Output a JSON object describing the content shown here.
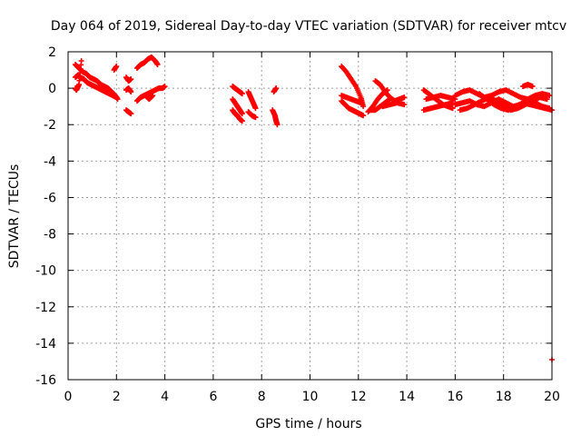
{
  "chart_data": {
    "type": "scatter",
    "title": "Day 064 of 2019, Sidereal Day-to-day VTEC variation (SDTVAR) for receiver mtcv",
    "xlabel": "GPS time / hours",
    "ylabel": "SDTVAR / TECUs",
    "xlim": [
      0,
      20
    ],
    "ylim": [
      -16,
      2
    ],
    "xticks": [
      0,
      2,
      4,
      6,
      8,
      10,
      12,
      14,
      16,
      18,
      20
    ],
    "yticks": [
      2,
      0,
      -2,
      -4,
      -6,
      -8,
      -10,
      -12,
      -14,
      -16
    ],
    "grid": true,
    "marker": "plus",
    "point_color": "#ff0000",
    "segments": [
      {
        "x": [
          0.3,
          0.45,
          0.6,
          0.75,
          0.9,
          1.05,
          1.2,
          1.35,
          1.5,
          1.65,
          1.8,
          1.95,
          2.05
        ],
        "y": [
          1.3,
          1.1,
          0.9,
          0.8,
          0.6,
          0.5,
          0.4,
          0.2,
          0.1,
          0.0,
          -0.2,
          -0.4,
          -0.6
        ]
      },
      {
        "x": [
          0.3,
          0.4,
          0.5,
          0.65,
          0.8,
          0.95,
          1.1,
          1.25,
          1.4,
          1.55,
          1.7,
          1.85,
          2.0
        ],
        "y": [
          0.6,
          0.7,
          0.6,
          0.5,
          0.3,
          0.2,
          0.1,
          0.0,
          -0.1,
          -0.2,
          -0.3,
          -0.4,
          -0.5
        ]
      },
      {
        "x": [
          0.3,
          0.35,
          0.45,
          0.55
        ],
        "y": [
          0.0,
          -0.1,
          0.2,
          1.5
        ]
      },
      {
        "x": [
          1.9,
          2.0
        ],
        "y": [
          1.0,
          1.2
        ]
      },
      {
        "x": [
          2.4,
          2.5,
          2.6
        ],
        "y": [
          0.6,
          0.4,
          0.5
        ]
      },
      {
        "x": [
          2.4,
          2.5,
          2.6
        ],
        "y": [
          -0.1,
          0.0,
          -0.2
        ]
      },
      {
        "x": [
          2.4,
          2.5,
          2.6
        ],
        "y": [
          -1.2,
          -1.3,
          -1.4
        ]
      },
      {
        "x": [
          2.85,
          3.0,
          3.15,
          3.3,
          3.45,
          3.6,
          3.7
        ],
        "y": [
          1.1,
          1.3,
          1.4,
          1.6,
          1.7,
          1.5,
          1.3
        ]
      },
      {
        "x": [
          2.85,
          3.0,
          3.15,
          3.3,
          3.45,
          3.6,
          3.75,
          3.9,
          4.0
        ],
        "y": [
          -0.7,
          -0.5,
          -0.4,
          -0.3,
          -0.2,
          -0.1,
          0.0,
          0.0,
          0.1
        ]
      },
      {
        "x": [
          3.2,
          3.35,
          3.5
        ],
        "y": [
          -0.4,
          -0.6,
          -0.4
        ]
      },
      {
        "x": [
          6.8,
          6.9,
          7.0,
          7.1,
          7.2
        ],
        "y": [
          0.1,
          0.0,
          -0.1,
          -0.2,
          -0.3
        ]
      },
      {
        "x": [
          6.8,
          6.9,
          7.0,
          7.1,
          7.2
        ],
        "y": [
          -0.6,
          -0.8,
          -1.0,
          -1.2,
          -1.4
        ]
      },
      {
        "x": [
          6.8,
          6.9,
          7.0,
          7.1,
          7.2
        ],
        "y": [
          -1.2,
          -1.4,
          -1.5,
          -1.7,
          -1.8
        ]
      },
      {
        "x": [
          7.45,
          7.55,
          7.65,
          7.75
        ],
        "y": [
          -0.2,
          -0.5,
          -0.8,
          -1.1
        ]
      },
      {
        "x": [
          7.45,
          7.6,
          7.75
        ],
        "y": [
          -1.3,
          -1.5,
          -1.6
        ]
      },
      {
        "x": [
          8.45,
          8.55,
          8.6,
          8.65
        ],
        "y": [
          -1.2,
          -1.5,
          -1.8,
          -2.0
        ]
      },
      {
        "x": [
          8.5,
          8.6
        ],
        "y": [
          -0.2,
          0.0
        ]
      },
      {
        "x": [
          11.3,
          11.5,
          11.7,
          11.9,
          12.1,
          12.2
        ],
        "y": [
          1.2,
          0.9,
          0.5,
          0.1,
          -0.5,
          -1.0
        ]
      },
      {
        "x": [
          11.3,
          11.45,
          11.6,
          11.75,
          11.9,
          12.05,
          12.2
        ],
        "y": [
          -0.7,
          -0.9,
          -1.1,
          -1.2,
          -1.3,
          -1.4,
          -1.5
        ]
      },
      {
        "x": [
          11.3,
          11.5,
          11.7,
          11.9,
          12.1
        ],
        "y": [
          -0.4,
          -0.5,
          -0.6,
          -0.7,
          -0.8
        ]
      },
      {
        "x": [
          12.4,
          12.6,
          12.8,
          13.0,
          13.2
        ],
        "y": [
          -1.3,
          -1.0,
          -0.6,
          -0.3,
          -0.1
        ]
      },
      {
        "x": [
          12.5,
          12.7,
          12.9,
          13.1,
          13.3
        ],
        "y": [
          -1.2,
          -1.2,
          -1.0,
          -0.8,
          -0.6
        ]
      },
      {
        "x": [
          12.7,
          12.9,
          13.1,
          13.3,
          13.5,
          13.7,
          13.9
        ],
        "y": [
          0.4,
          0.2,
          -0.2,
          -0.5,
          -0.7,
          -0.6,
          -0.5
        ]
      },
      {
        "x": [
          13.0,
          13.3,
          13.6,
          13.9
        ],
        "y": [
          -1.0,
          -0.9,
          -0.8,
          -0.9
        ]
      },
      {
        "x": [
          14.7,
          14.9,
          15.1,
          15.3,
          15.5,
          15.7,
          15.9
        ],
        "y": [
          -0.1,
          -0.3,
          -0.5,
          -0.7,
          -0.9,
          -1.0,
          -1.1
        ]
      },
      {
        "x": [
          14.7,
          15.0,
          15.3,
          15.6,
          15.9
        ],
        "y": [
          -1.2,
          -1.1,
          -1.0,
          -0.9,
          -0.8
        ]
      },
      {
        "x": [
          14.8,
          15.1,
          15.4,
          15.7,
          16.0
        ],
        "y": [
          -0.6,
          -0.5,
          -0.4,
          -0.5,
          -0.6
        ]
      },
      {
        "x": [
          16.0,
          16.3,
          16.6,
          16.9,
          17.2,
          17.5,
          17.8,
          18.1,
          18.4,
          18.7,
          19.0,
          19.3,
          19.6,
          19.9
        ],
        "y": [
          -0.9,
          -0.8,
          -0.7,
          -0.9,
          -1.0,
          -0.8,
          -0.6,
          -0.8,
          -1.0,
          -0.9,
          -0.7,
          -0.8,
          -1.0,
          -1.1
        ]
      },
      {
        "x": [
          16.0,
          16.3,
          16.6,
          16.9,
          17.2,
          17.5,
          17.8,
          18.1,
          18.4,
          18.7,
          19.0,
          19.3,
          19.6,
          19.9
        ],
        "y": [
          -0.4,
          -0.2,
          -0.1,
          -0.3,
          -0.5,
          -0.4,
          -0.2,
          -0.1,
          -0.3,
          -0.5,
          -0.6,
          -0.4,
          -0.3,
          -0.4
        ]
      },
      {
        "x": [
          16.2,
          16.5,
          16.8,
          17.1,
          17.4,
          17.7,
          18.0,
          18.3,
          18.6,
          18.9,
          19.2,
          19.5,
          19.8
        ],
        "y": [
          -1.2,
          -1.1,
          -0.9,
          -0.7,
          -0.5,
          -0.7,
          -1.0,
          -1.2,
          -1.1,
          -0.9,
          -0.7,
          -0.5,
          -0.6
        ]
      },
      {
        "x": [
          17.0,
          17.3,
          17.6,
          17.9,
          18.2,
          18.5,
          18.8,
          19.1,
          19.4,
          19.7,
          20.0
        ],
        "y": [
          -0.3,
          -0.6,
          -0.9,
          -1.1,
          -1.2,
          -1.0,
          -0.8,
          -0.9,
          -1.0,
          -1.1,
          -1.2
        ]
      },
      {
        "x": [
          18.8,
          19.0,
          19.2
        ],
        "y": [
          0.1,
          0.2,
          0.1
        ]
      },
      {
        "x": [
          20.0
        ],
        "y": [
          -14.9
        ]
      }
    ]
  }
}
